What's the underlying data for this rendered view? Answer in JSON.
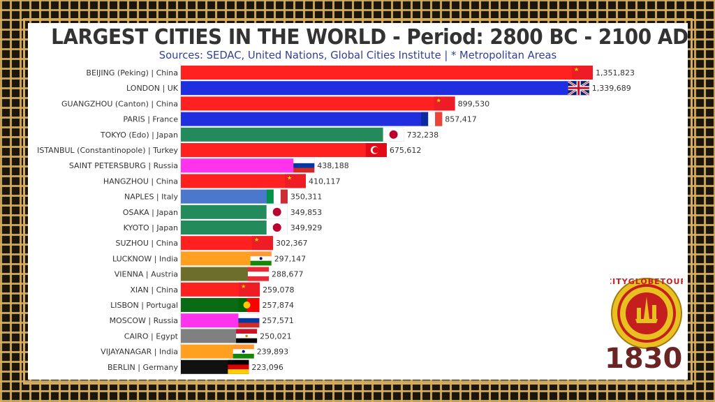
{
  "header": {
    "title": "LARGEST CITIES IN THE WORLD - Period: 2800 BC - 2100 AD",
    "subtitle": "Sources: SEDAC, United Nations, Global Cities Institute | * Metropolitan Areas"
  },
  "period": {
    "year": "1830"
  },
  "logo": {
    "text": "CITYGLOBETOUR",
    "icon": "landmarks-icon",
    "ring_color": "#e8c020",
    "inner_color": "#c41e1e"
  },
  "chart_data": {
    "type": "bar",
    "orientation": "horizontal",
    "title": "LARGEST CITIES IN THE WORLD - Period: 2800 BC - 2100 AD",
    "categories": [
      "BEIJING (Peking) | China",
      "LONDON | UK",
      "GUANGZHOU (Canton) | China",
      "PARIS | France",
      "TOKYO (Edo) | Japan",
      "ISTANBUL (Constantinopole) | Turkey",
      "SAINT PETERSBURG | Russia",
      "HANGZHOU | China",
      "NAPLES | Italy",
      "OSAKA | Japan",
      "KYOTO | Japan",
      "SUZHOU | China",
      "LUCKNOW | India",
      "VIENNA | Austria",
      "XIAN | China",
      "LISBON | Portugal",
      "MOSCOW | Russia",
      "CAIRO | Egypt",
      "VIJAYANAGAR | India",
      "BERLIN | Germany"
    ],
    "values": [
      1351823,
      1339689,
      899530,
      857417,
      732238,
      675612,
      438188,
      410117,
      350311,
      349853,
      349929,
      302367,
      297147,
      288677,
      259078,
      257874,
      257571,
      250021,
      239893,
      223096
    ],
    "value_labels": [
      "1,351,823",
      "1,339,689",
      "899,530",
      "857,417",
      "732,238",
      "675,612",
      "438,188",
      "410,117",
      "350,311",
      "349,853",
      "349,929",
      "302,367",
      "297,147",
      "288,677",
      "259,078",
      "257,874",
      "257,571",
      "250,021",
      "239,893",
      "223,096"
    ],
    "colors": [
      "#ff2020",
      "#1f2fe0",
      "#ff2020",
      "#1f2fe0",
      "#238a5c",
      "#ff2020",
      "#ff33ee",
      "#ff2020",
      "#4b77cc",
      "#238a5c",
      "#238a5c",
      "#ff2020",
      "#ffa020",
      "#6e6e2c",
      "#ff2020",
      "#0b6b14",
      "#ff33ee",
      "#808080",
      "#ffa020",
      "#111111"
    ],
    "flags": [
      "china",
      "uk",
      "china",
      "france",
      "japan",
      "turkey",
      "russia",
      "china",
      "italy",
      "japan",
      "japan",
      "china",
      "india",
      "austria",
      "china",
      "portugal",
      "russia",
      "egypt",
      "india",
      "germany"
    ],
    "xlim": [
      0,
      1351823
    ],
    "grid": false,
    "legend": "none"
  }
}
